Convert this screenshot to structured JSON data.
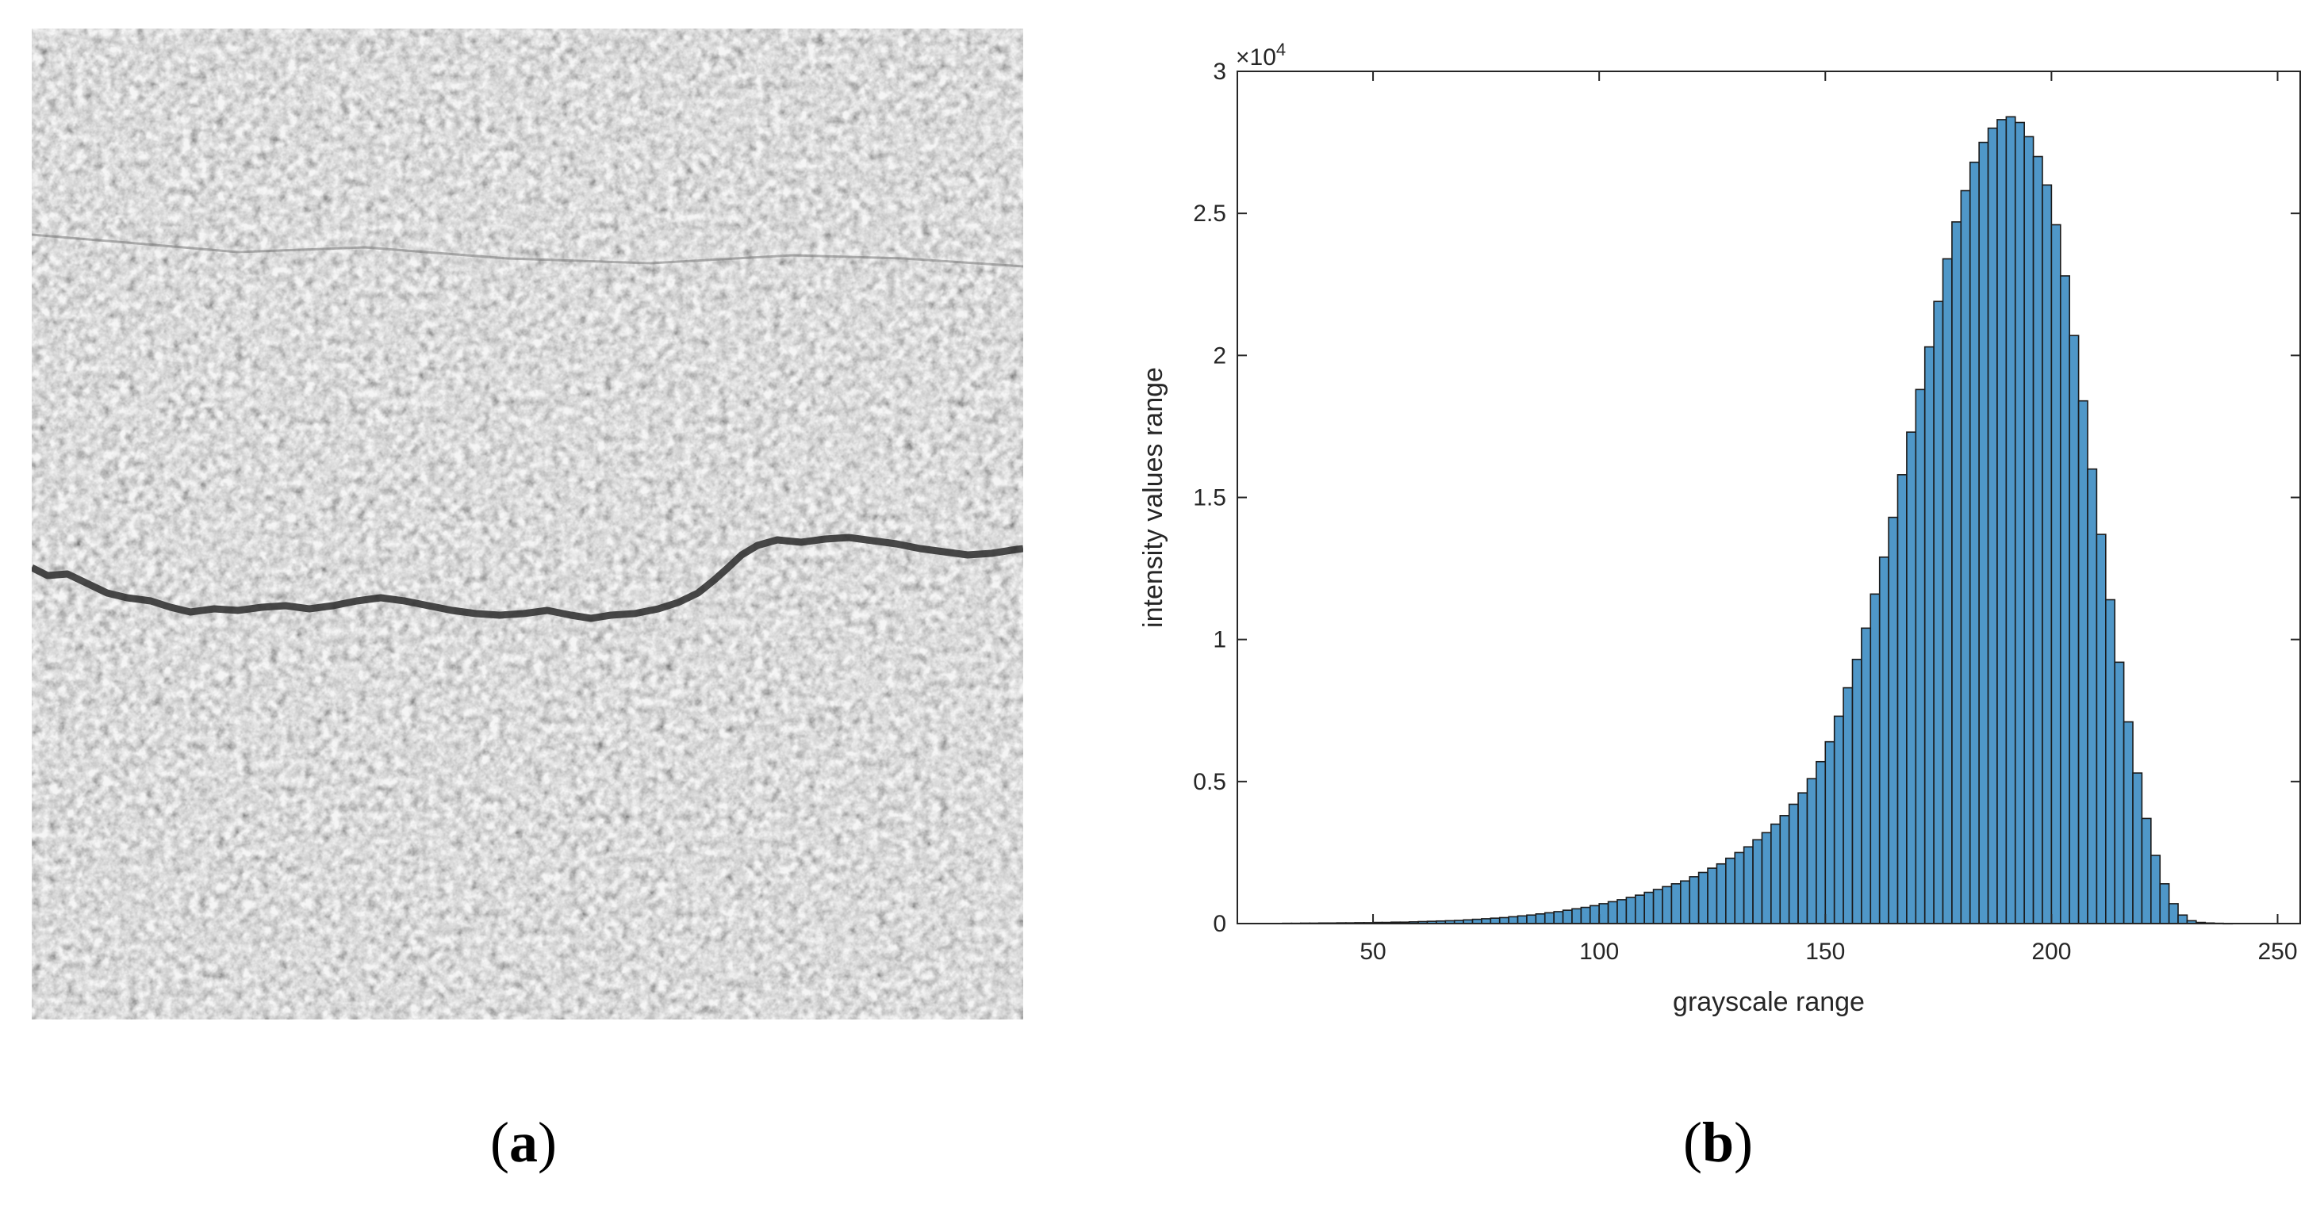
{
  "captions": {
    "a": "a",
    "b": "b"
  },
  "panel_a": {
    "kind": "grayscale texture image with crack",
    "background": "#bdbdbd",
    "crack_color": "#2a2a2a"
  },
  "chart_data": {
    "type": "bar",
    "title": "",
    "xlabel": "grayscale range",
    "ylabel": "intensity values range",
    "y_exponent_label": "×10",
    "y_exponent_power": "4",
    "xlim": [
      20,
      255
    ],
    "ylim": [
      0,
      30000
    ],
    "xticks": [
      50,
      100,
      150,
      200,
      250
    ],
    "yticks": [
      0,
      5000,
      10000,
      15000,
      20000,
      25000,
      30000
    ],
    "ytick_labels": [
      "0",
      "0.5",
      "1",
      "1.5",
      "2",
      "2.5",
      "3"
    ],
    "bar_color": "#4f97c8",
    "bar_edge": "#1a1a1a",
    "bin_width": 2,
    "x": [
      31,
      33,
      35,
      37,
      39,
      41,
      43,
      45,
      47,
      49,
      51,
      53,
      55,
      57,
      59,
      61,
      63,
      65,
      67,
      69,
      71,
      73,
      75,
      77,
      79,
      81,
      83,
      85,
      87,
      89,
      91,
      93,
      95,
      97,
      99,
      101,
      103,
      105,
      107,
      109,
      111,
      113,
      115,
      117,
      119,
      121,
      123,
      125,
      127,
      129,
      131,
      133,
      135,
      137,
      139,
      141,
      143,
      145,
      147,
      149,
      151,
      153,
      155,
      157,
      159,
      161,
      163,
      165,
      167,
      169,
      171,
      173,
      175,
      177,
      179,
      181,
      183,
      185,
      187,
      189,
      191,
      193,
      195,
      197,
      199,
      201,
      203,
      205,
      207,
      209,
      211,
      213,
      215,
      217,
      219,
      221,
      223,
      225,
      227,
      229,
      231,
      233,
      235,
      237,
      239,
      241,
      243
    ],
    "values": [
      10,
      10,
      15,
      15,
      20,
      20,
      25,
      25,
      30,
      30,
      40,
      40,
      50,
      50,
      60,
      70,
      80,
      90,
      100,
      110,
      130,
      150,
      170,
      190,
      210,
      240,
      270,
      300,
      340,
      380,
      420,
      470,
      520,
      570,
      630,
      700,
      770,
      840,
      920,
      1000,
      1100,
      1200,
      1300,
      1400,
      1500,
      1650,
      1800,
      1950,
      2100,
      2300,
      2500,
      2700,
      2950,
      3200,
      3500,
      3800,
      4200,
      4600,
      5100,
      5700,
      6400,
      7300,
      8300,
      9300,
      10400,
      11600,
      12900,
      14300,
      15800,
      17300,
      18800,
      20300,
      21900,
      23400,
      24700,
      25800,
      26800,
      27500,
      28000,
      28300,
      28400,
      28200,
      27700,
      27000,
      26000,
      24600,
      22800,
      20700,
      18400,
      16000,
      13700,
      11400,
      9200,
      7100,
      5300,
      3700,
      2400,
      1400,
      700,
      300,
      100,
      40,
      20,
      10,
      5,
      0,
      0
    ]
  }
}
